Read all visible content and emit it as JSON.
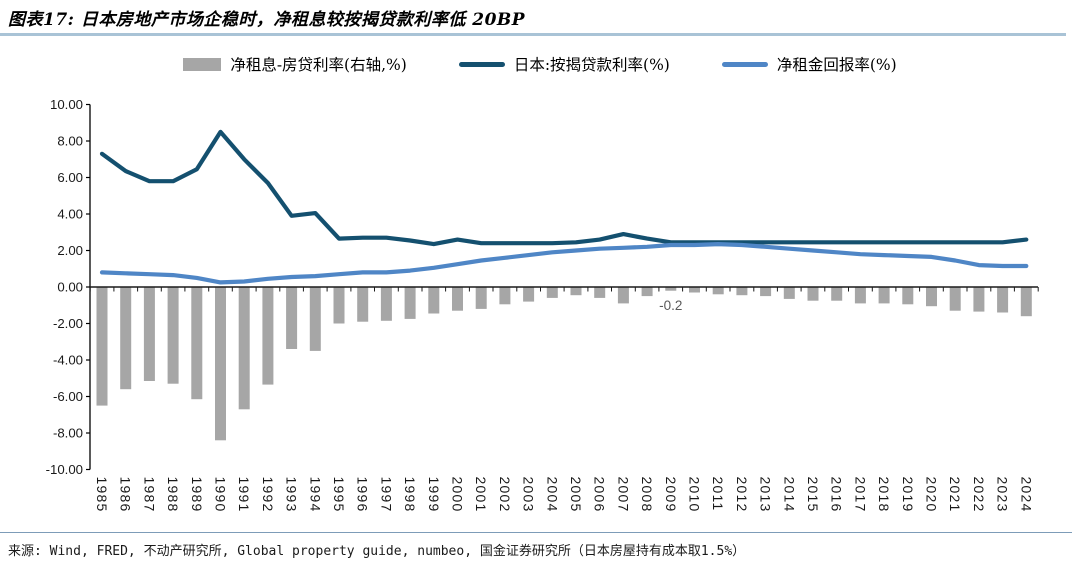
{
  "header": {
    "title": "图表17: 日本房地产市场企稳时，净租息较按揭贷款利率低 20BP"
  },
  "legend": [
    {
      "label": "净租息-房贷利率(右轴,%)",
      "marker": "bar-swatch",
      "color": "#a6a6a6"
    },
    {
      "label": "日本:按揭贷款利率(%)",
      "marker": "line-swatch",
      "color": "#14506f"
    },
    {
      "label": "净租金回报率(%)",
      "marker": "line-swatch",
      "color": "#4f86c6"
    }
  ],
  "chart_data": {
    "type": "combo",
    "title": "图表17: 日本房地产市场企稳时，净租息较按揭贷款利率低 20BP",
    "categories": [
      "1985",
      "1986",
      "1987",
      "1988",
      "1989",
      "1990",
      "1991",
      "1992",
      "1993",
      "1994",
      "1995",
      "1996",
      "1997",
      "1998",
      "1999",
      "2000",
      "2001",
      "2002",
      "2003",
      "2004",
      "2005",
      "2006",
      "2007",
      "2008",
      "2009",
      "2010",
      "2011",
      "2012",
      "2013",
      "2014",
      "2015",
      "2016",
      "2017",
      "2018",
      "2019",
      "2020",
      "2021",
      "2022",
      "2023",
      "2024"
    ],
    "series": [
      {
        "name": "净租息-房贷利率(右轴,%)",
        "type": "bar",
        "color": "#a6a6a6",
        "values": [
          -6.5,
          -5.6,
          -5.15,
          -5.3,
          -6.15,
          -8.4,
          -6.7,
          -5.35,
          -3.4,
          -3.5,
          -2.0,
          -1.9,
          -1.85,
          -1.75,
          -1.45,
          -1.3,
          -1.2,
          -0.95,
          -0.8,
          -0.6,
          -0.45,
          -0.6,
          -0.9,
          -0.5,
          -0.2,
          -0.3,
          -0.4,
          -0.45,
          -0.5,
          -0.65,
          -0.75,
          -0.75,
          -0.9,
          -0.9,
          -0.95,
          -1.05,
          -1.3,
          -1.35,
          -1.4,
          -1.6
        ]
      },
      {
        "name": "日本:按揭贷款利率(%)",
        "type": "line",
        "color": "#14506f",
        "values": [
          7.3,
          6.35,
          5.8,
          5.8,
          6.45,
          8.5,
          7.0,
          5.7,
          3.9,
          4.05,
          2.65,
          2.7,
          2.7,
          2.55,
          2.35,
          2.6,
          2.4,
          2.4,
          2.4,
          2.4,
          2.45,
          2.6,
          2.9,
          2.65,
          2.45,
          2.45,
          2.45,
          2.45,
          2.45,
          2.45,
          2.45,
          2.45,
          2.45,
          2.45,
          2.45,
          2.45,
          2.45,
          2.45,
          2.45,
          2.6
        ]
      },
      {
        "name": "净租金回报率(%)",
        "type": "line",
        "color": "#4f86c6",
        "values": [
          0.8,
          0.75,
          0.7,
          0.65,
          0.5,
          0.25,
          0.3,
          0.45,
          0.55,
          0.6,
          0.7,
          0.8,
          0.8,
          0.9,
          1.05,
          1.25,
          1.45,
          1.6,
          1.75,
          1.9,
          2.0,
          2.1,
          2.15,
          2.2,
          2.3,
          2.3,
          2.35,
          2.3,
          2.2,
          2.1,
          2.0,
          1.9,
          1.8,
          1.75,
          1.7,
          1.65,
          1.45,
          1.2,
          1.15,
          1.15
        ]
      }
    ],
    "ylim": [
      -10,
      10
    ],
    "ytick_step": 2,
    "ytick_labels": [
      "10.00",
      "8.00",
      "6.00",
      "4.00",
      "2.00",
      "0.00",
      "-2.00",
      "-4.00",
      "-6.00",
      "-8.00",
      "-10.00"
    ],
    "grid": false,
    "legend_position": "top",
    "annotation": {
      "text": "-0.2",
      "year": "2009",
      "value": -1.25
    }
  },
  "footer": {
    "source": "来源: Wind, FRED, 不动产研究所, Global property guide, numbeo, 国金证券研究所（日本房屋持有成本取1.5%）"
  }
}
